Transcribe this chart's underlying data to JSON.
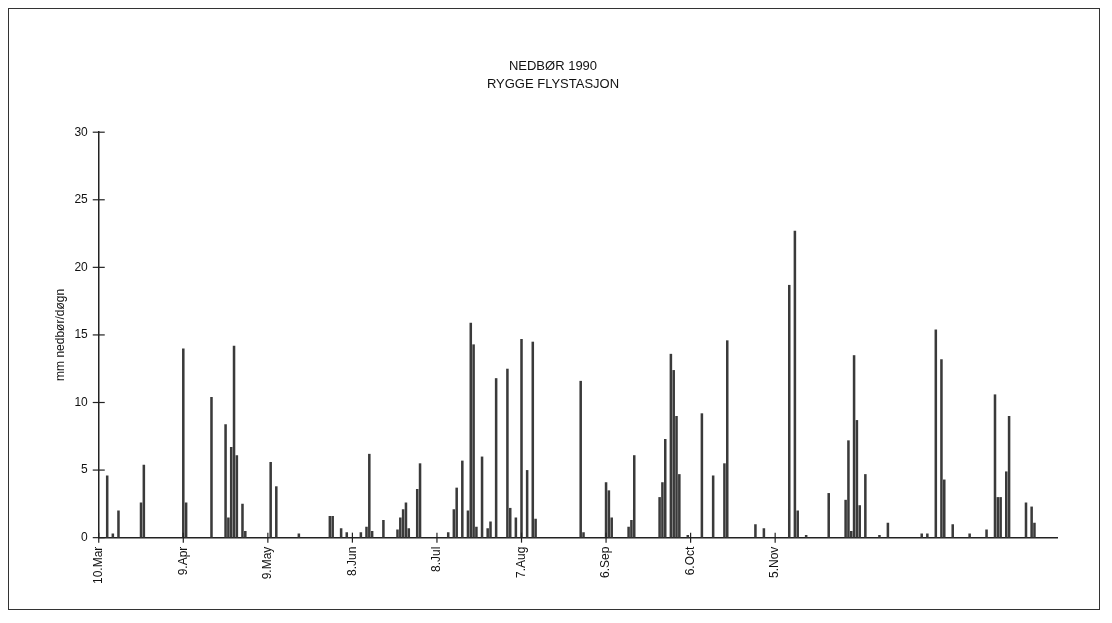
{
  "chart_data": {
    "type": "bar",
    "title": "NEDBØR 1990",
    "subtitle": "RYGGE FLYSTASJON",
    "ylabel": "mm nedbør/døgn",
    "x": [
      "1990-03-13",
      "1990-03-15",
      "1990-03-17",
      "1990-03-25",
      "1990-03-26",
      "1990-04-09",
      "1990-04-10",
      "1990-04-19",
      "1990-04-24",
      "1990-04-25",
      "1990-04-26",
      "1990-04-27",
      "1990-04-28",
      "1990-04-30",
      "1990-05-01",
      "1990-05-10",
      "1990-05-12",
      "1990-05-20",
      "1990-05-31",
      "1990-06-01",
      "1990-06-04",
      "1990-06-06",
      "1990-06-11",
      "1990-06-13",
      "1990-06-14",
      "1990-06-15",
      "1990-06-19",
      "1990-06-24",
      "1990-06-25",
      "1990-06-26",
      "1990-06-27",
      "1990-06-28",
      "1990-07-01",
      "1990-07-02",
      "1990-07-12",
      "1990-07-14",
      "1990-07-15",
      "1990-07-17",
      "1990-07-19",
      "1990-07-20",
      "1990-07-21",
      "1990-07-22",
      "1990-07-24",
      "1990-07-26",
      "1990-07-27",
      "1990-07-29",
      "1990-08-02",
      "1990-08-03",
      "1990-08-05",
      "1990-08-07",
      "1990-08-09",
      "1990-08-11",
      "1990-08-12",
      "1990-08-28",
      "1990-08-29",
      "1990-09-06",
      "1990-09-07",
      "1990-09-08",
      "1990-09-14",
      "1990-09-15",
      "1990-09-16",
      "1990-09-25",
      "1990-09-26",
      "1990-09-27",
      "1990-09-29",
      "1990-09-30",
      "1990-10-01",
      "1990-10-02",
      "1990-10-05",
      "1990-10-10",
      "1990-10-14",
      "1990-10-18",
      "1990-10-19",
      "1990-10-29",
      "1990-11-01",
      "1990-11-10",
      "1990-11-12",
      "1990-11-13",
      "1990-11-16",
      "1990-11-24",
      "1990-11-30",
      "1990-12-01",
      "1990-12-02",
      "1990-12-03",
      "1990-12-04",
      "1990-12-05",
      "1990-12-07",
      "1990-12-12",
      "1990-12-15",
      "1990-12-27",
      "1990-12-29",
      "1991-01-01",
      "1991-01-03",
      "1991-01-04",
      "1991-01-07",
      "1991-01-13",
      "1991-01-19",
      "1991-01-22",
      "1991-01-23",
      "1991-01-24",
      "1991-01-26",
      "1991-01-27",
      "1991-02-02",
      "1991-02-04",
      "1991-02-05"
    ],
    "values": [
      4.6,
      0.3,
      2.0,
      2.6,
      5.4,
      14.0,
      2.6,
      10.4,
      8.4,
      1.5,
      6.7,
      14.2,
      6.1,
      2.5,
      0.5,
      5.6,
      3.8,
      0.3,
      1.6,
      1.6,
      0.7,
      0.4,
      0.4,
      0.8,
      6.2,
      0.5,
      1.3,
      0.6,
      1.5,
      2.1,
      2.6,
      0.7,
      3.6,
      5.5,
      0.4,
      2.1,
      3.7,
      5.7,
      2.0,
      15.9,
      14.3,
      0.8,
      6.0,
      0.7,
      1.2,
      11.8,
      12.5,
      2.2,
      1.5,
      14.7,
      5.0,
      14.5,
      1.4,
      11.6,
      0.4,
      4.1,
      3.5,
      1.5,
      0.8,
      1.3,
      6.1,
      3.0,
      4.1,
      7.3,
      13.6,
      12.4,
      9.0,
      4.7,
      0.2,
      9.2,
      4.6,
      5.5,
      14.6,
      1.0,
      0.7,
      18.7,
      22.7,
      2.0,
      0.2,
      3.3,
      2.8,
      7.2,
      0.5,
      13.5,
      8.7,
      2.4,
      4.7,
      0.2,
      1.1,
      0.3,
      0.3,
      15.4,
      13.2,
      4.3,
      1.0,
      0.3,
      0.6,
      10.6,
      3.0,
      3.0,
      4.9,
      9.0,
      2.6,
      2.3,
      1.1
    ],
    "color": "#3a3a3a",
    "xlim": [
      "1990-03-10",
      "1991-02-13"
    ],
    "xticks": [
      {
        "value": "1990-03-10",
        "label": "10.Mar"
      },
      {
        "value": "1990-04-09",
        "label": "9.Apr"
      },
      {
        "value": "1990-05-09",
        "label": "9.May"
      },
      {
        "value": "1990-06-08",
        "label": "8.Jun"
      },
      {
        "value": "1990-07-08",
        "label": "8.Jul"
      },
      {
        "value": "1990-08-07",
        "label": "7.Aug"
      },
      {
        "value": "1990-09-06",
        "label": "6.Sep"
      },
      {
        "value": "1990-10-06",
        "label": "6.Oct"
      },
      {
        "value": "1990-11-05",
        "label": "5.Nov"
      }
    ],
    "ylim": [
      0,
      30
    ],
    "yticks": [
      0,
      5,
      10,
      15,
      20,
      25,
      30
    ],
    "grid": false,
    "legend": false
  }
}
